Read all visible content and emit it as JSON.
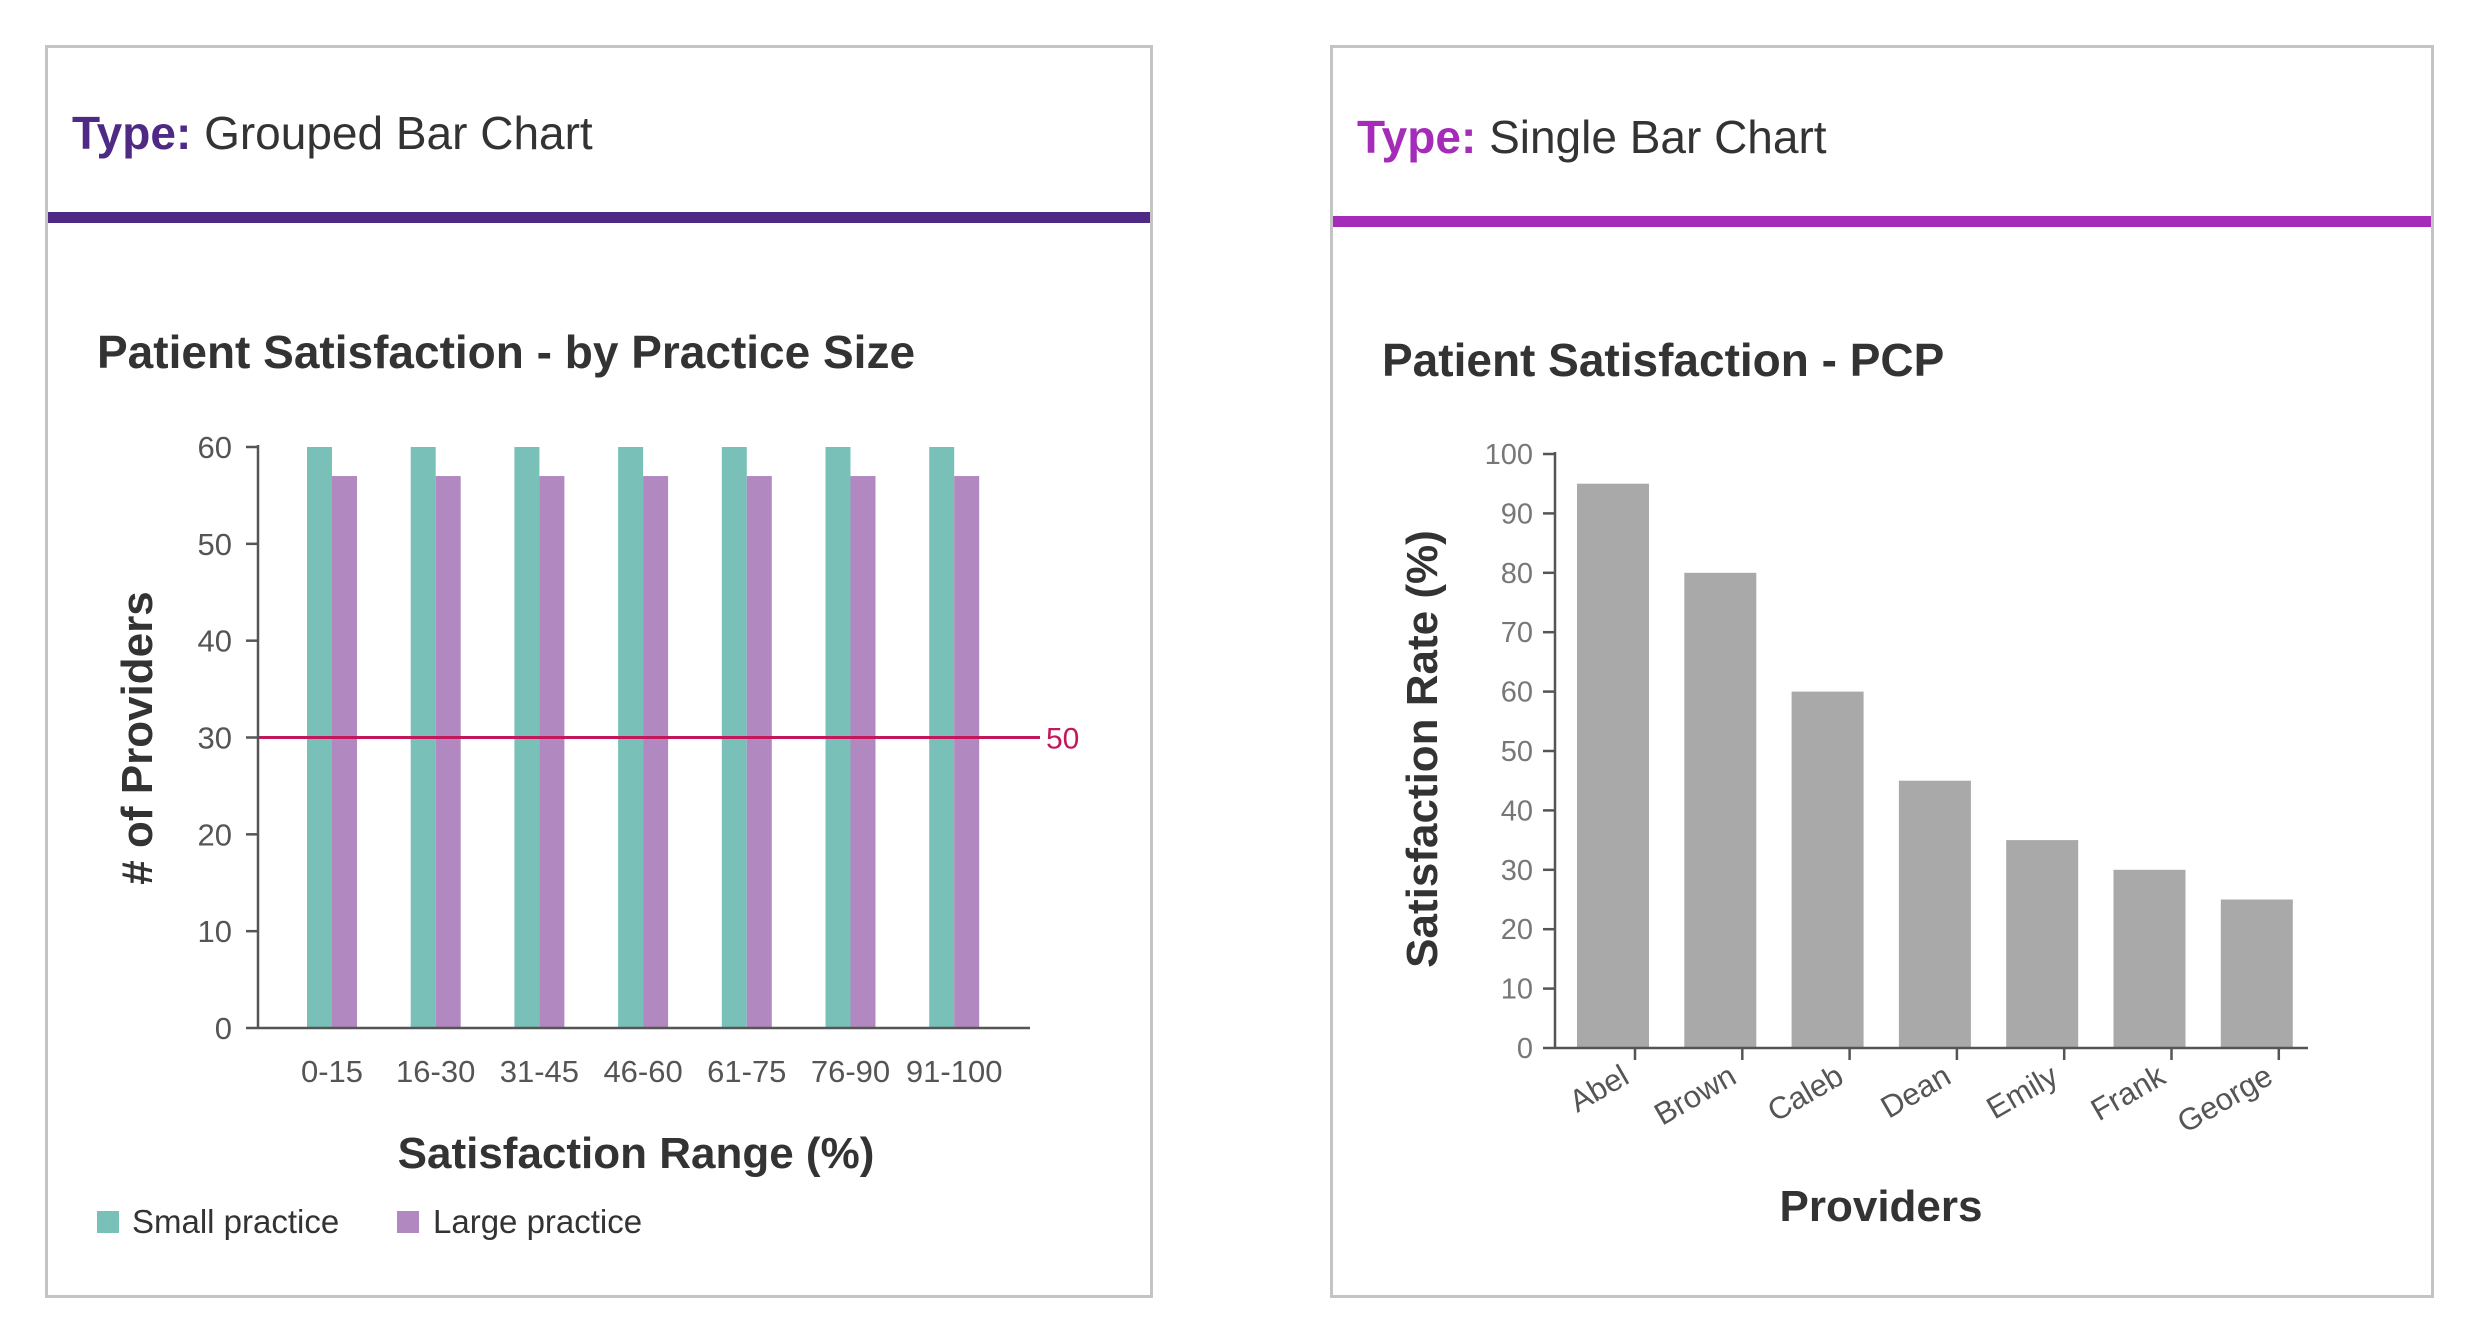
{
  "colors": {
    "left_accent": "#4e2a84",
    "right_accent": "#a42cb8",
    "small_practice": "#79c1b8",
    "large_practice": "#b188bf",
    "reference_line": "#c2185b",
    "single_bar": "#a9a9a9"
  },
  "left_card": {
    "type_label": "Type:",
    "type_value": "Grouped Bar Chart"
  },
  "right_card": {
    "type_label": "Type:",
    "type_value": "Single Bar Chart"
  },
  "chart_data": [
    {
      "type": "bar",
      "title": "Patient Satisfaction - by Practice Size",
      "xlabel": "Satisfaction Range (%)",
      "ylabel": "# of Providers",
      "ylim": [
        0,
        60
      ],
      "yticks": [
        0,
        10,
        20,
        30,
        40,
        50,
        60
      ],
      "categories": [
        "0-15",
        "16-30",
        "31-45",
        "46-60",
        "61-75",
        "76-90",
        "91-100"
      ],
      "series": [
        {
          "name": "Small practice",
          "values": [
            60,
            60,
            60,
            60,
            60,
            60,
            60
          ]
        },
        {
          "name": "Large practice",
          "values": [
            57,
            57,
            57,
            57,
            57,
            57,
            57
          ]
        }
      ],
      "reference_line": {
        "y": 30,
        "label": "50"
      },
      "legend": "bottom-left",
      "grid": false
    },
    {
      "type": "bar",
      "title": "Patient Satisfaction - PCP",
      "xlabel": "Providers",
      "ylabel": "Satisfaction Rate (%)",
      "ylim": [
        0,
        100
      ],
      "yticks": [
        0,
        10,
        20,
        30,
        40,
        50,
        60,
        70,
        80,
        90,
        100
      ],
      "categories": [
        "Abel",
        "Brown",
        "Caleb",
        "Dean",
        "Emily",
        "Frank",
        "George"
      ],
      "values": [
        95,
        80,
        60,
        45,
        35,
        30,
        25
      ],
      "grid": false
    }
  ]
}
